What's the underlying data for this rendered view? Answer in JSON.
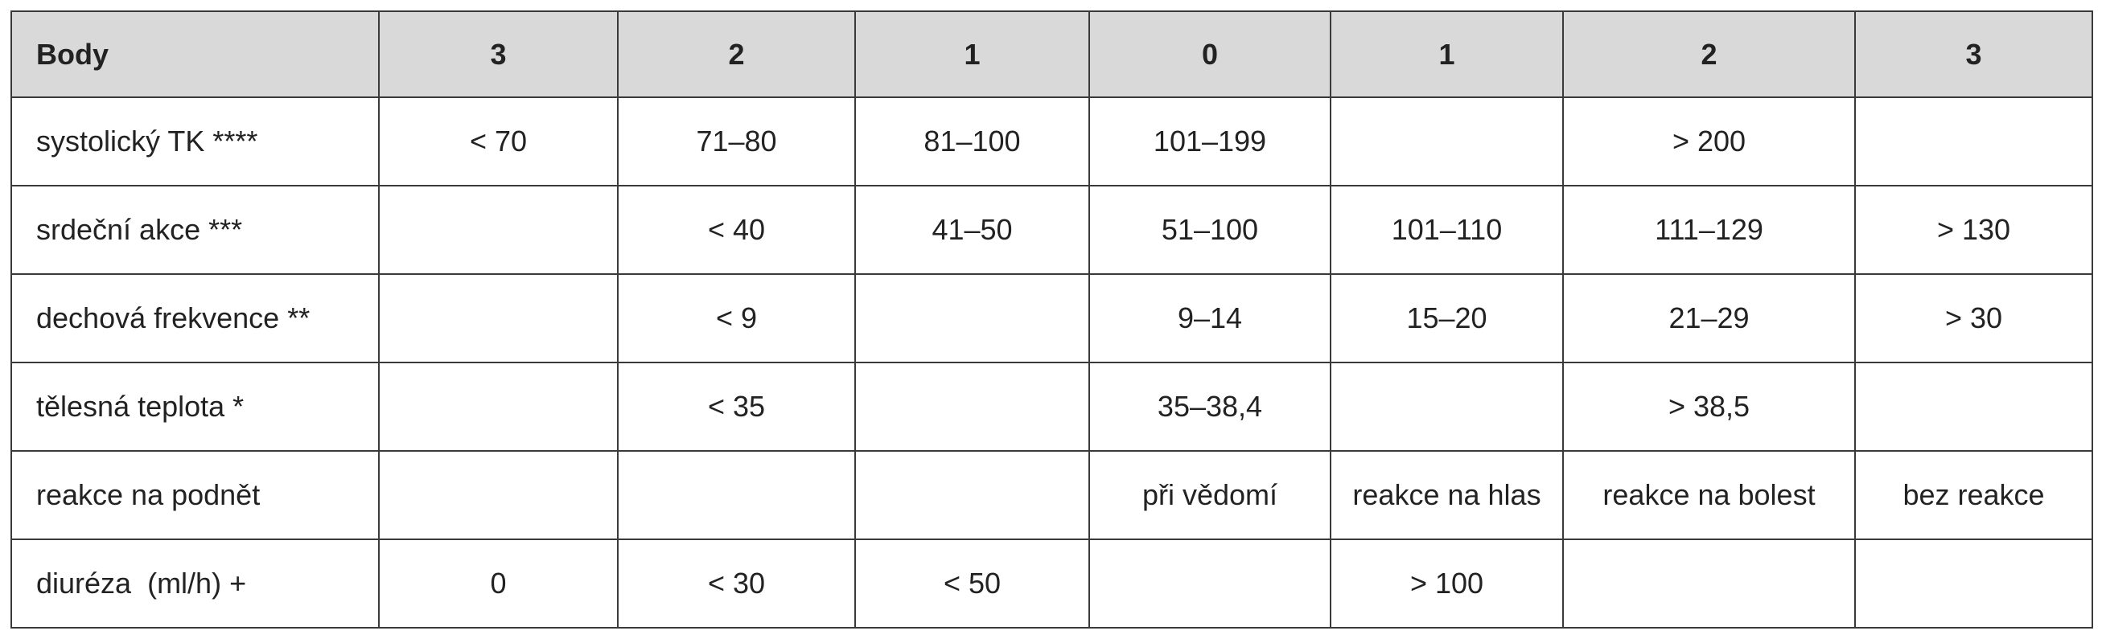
{
  "table": {
    "header": [
      "Body",
      "3",
      "2",
      "1",
      "0",
      "1",
      "2",
      "3"
    ],
    "rows": [
      [
        "systolický TK ****",
        "< 70",
        "71–80",
        "81–100",
        "101–199",
        null,
        "> 200",
        null
      ],
      [
        "srdeční akce ***",
        null,
        "< 40",
        "41–50",
        "51–100",
        "101–110",
        "111–129",
        "> 130"
      ],
      [
        "dechová frekvence **",
        null,
        "< 9",
        null,
        "9–14",
        "15–20",
        "21–29",
        "> 30"
      ],
      [
        "tělesná teplota *",
        null,
        "< 35",
        null,
        "35–38,4",
        null,
        "> 38,5",
        null
      ],
      [
        "reakce na podnět",
        null,
        null,
        null,
        "při vědomí",
        "reakce na hlas",
        "reakce na bolest",
        "bez reakce"
      ],
      [
        "diuréza  (ml/h) +",
        "0",
        "< 30",
        "< 50",
        null,
        "> 100",
        null,
        null
      ]
    ]
  }
}
